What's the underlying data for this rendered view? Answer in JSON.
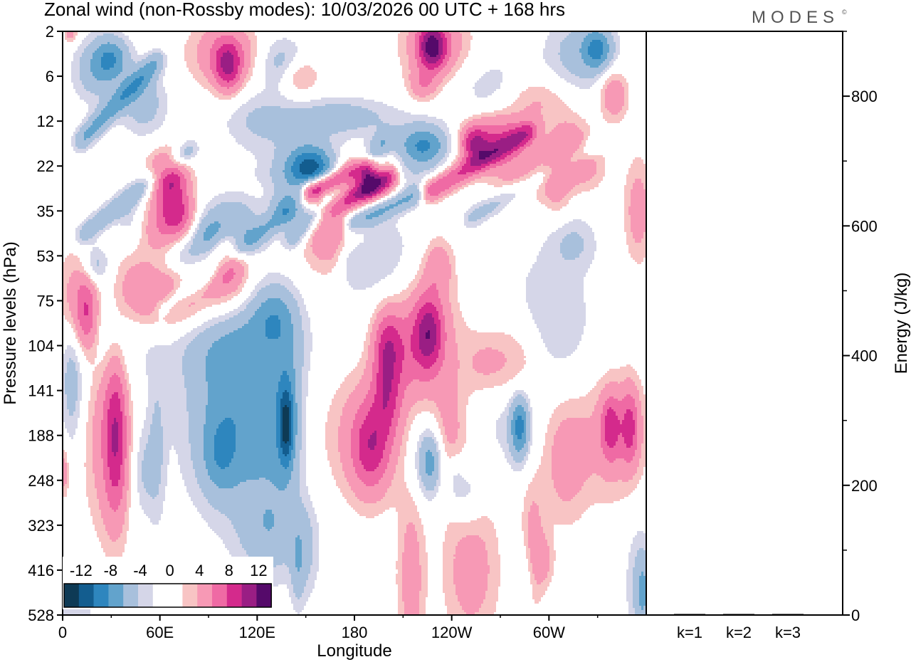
{
  "chart_data": [
    {
      "type": "heatmap",
      "title": "Zonal wind (non-Rossby modes):  10/03/2026  00 UTC  + 168 hrs",
      "brand": "MODES",
      "brand_mark": "©",
      "xlabel": "Longitude",
      "ylabel": "Pressure levels (hPa)",
      "x_ticks": [
        {
          "lon": 0,
          "label": "0"
        },
        {
          "lon": 60,
          "label": "60E"
        },
        {
          "lon": 120,
          "label": "120E"
        },
        {
          "lon": 180,
          "label": "180"
        },
        {
          "lon": 240,
          "label": "120W"
        },
        {
          "lon": 300,
          "label": "60W"
        }
      ],
      "xlim": [
        0,
        360
      ],
      "y_levels": [
        "2",
        "6",
        "12",
        "22",
        "35",
        "53",
        "75",
        "104",
        "141",
        "188",
        "248",
        "323",
        "416",
        "528"
      ],
      "colorbar": {
        "labels": [
          "-12",
          "-8",
          "-4",
          "0",
          "4",
          "8",
          "12"
        ],
        "colors": [
          "#0e3a55",
          "#135d8f",
          "#2e86be",
          "#62a3cc",
          "#a8c0dc",
          "#d5d6e8",
          "#ffffff",
          "#ffffff",
          "#f8c4c4",
          "#f799b5",
          "#ef6aa4",
          "#d42a8c",
          "#9a1e84",
          "#550a6a"
        ]
      },
      "blobs": [
        {
          "lon": 5,
          "lev": 0.05,
          "lonw": 3,
          "levh": 0.15,
          "v": 3
        },
        {
          "lon": 20,
          "lev": 0.9,
          "lonw": 10,
          "levh": 0.5,
          "v": -3
        },
        {
          "lon": 30,
          "lev": 0.6,
          "lonw": 8,
          "levh": 0.35,
          "v": -5
        },
        {
          "lon": 50,
          "lev": 1.6,
          "lonw": 10,
          "levh": 0.5,
          "v": -3
        },
        {
          "lon": 100,
          "lev": 0.5,
          "lonw": 15,
          "levh": 0.5,
          "v": 4
        },
        {
          "lon": 102,
          "lev": 0.8,
          "lonw": 6,
          "levh": 0.4,
          "v": 6
        },
        {
          "lon": 120,
          "lev": 2.0,
          "lonw": 15,
          "levh": 0.5,
          "v": -2
        },
        {
          "lon": 135,
          "lev": 0.7,
          "lonw": 10,
          "levh": 0.4,
          "v": -3
        },
        {
          "lon": 146,
          "lev": 1.0,
          "lonw": 8,
          "levh": 0.3,
          "v": 3
        },
        {
          "lon": 170,
          "lev": 1.9,
          "lonw": 25,
          "levh": 0.3,
          "v": -3
        },
        {
          "lon": 180,
          "lev": 3.2,
          "lonw": 30,
          "levh": 0.2,
          "v": -3
        },
        {
          "lon": 230,
          "lev": 0.3,
          "lonw": 14,
          "levh": 0.6,
          "v": 4
        },
        {
          "lon": 228,
          "lev": 0.35,
          "lonw": 6,
          "levh": 0.35,
          "v": 8
        },
        {
          "lon": 222,
          "lev": 1.2,
          "lonw": 6,
          "levh": 0.25,
          "v": 3
        },
        {
          "lon": 230,
          "lev": 2.4,
          "lonw": 20,
          "levh": 0.35,
          "v": -2
        },
        {
          "lon": 222,
          "lev": 2.6,
          "lonw": 10,
          "levh": 0.3,
          "v": -5
        },
        {
          "lon": 260,
          "lev": 2.5,
          "lonw": 15,
          "levh": 0.4,
          "v": 3
        },
        {
          "lon": 254,
          "lev": 2.5,
          "lonw": 6,
          "levh": 0.25,
          "v": 6
        },
        {
          "lon": 270,
          "lev": 1.3,
          "lonw": 20,
          "levh": 0.5,
          "v": -2
        },
        {
          "lon": 285,
          "lev": 3.2,
          "lonw": 15,
          "levh": 0.4,
          "v": 3
        },
        {
          "lon": 290,
          "lev": 1.5,
          "lonw": 15,
          "levh": 0.4,
          "v": 3
        },
        {
          "lon": 320,
          "lev": 0.5,
          "lonw": 15,
          "levh": 0.6,
          "v": -3
        },
        {
          "lon": 330,
          "lev": 0.4,
          "lonw": 6,
          "levh": 0.3,
          "v": -5
        },
        {
          "lon": 315,
          "lev": 2.6,
          "lonw": 8,
          "levh": 0.5,
          "v": 3
        },
        {
          "lon": 325,
          "lev": 3.0,
          "lonw": 8,
          "levh": 0.4,
          "v": 2
        },
        {
          "lon": 340,
          "lev": 1.4,
          "lonw": 6,
          "levh": 0.4,
          "v": 4
        },
        {
          "lon": 355,
          "lev": 4.0,
          "lonw": 6,
          "levh": 0.8,
          "v": 3
        },
        {
          "lon": 315,
          "lev": 4.7,
          "lonw": 10,
          "levh": 0.4,
          "v": -2
        },
        {
          "lon": 8,
          "lev": 6.0,
          "lonw": 8,
          "levh": 0.8,
          "v": 3
        },
        {
          "lon": 15,
          "lev": 6.3,
          "lonw": 5,
          "levh": 0.6,
          "v": 5
        },
        {
          "lon": 30,
          "lev": 6.8,
          "lonw": 16,
          "levh": 0.8,
          "v": -2
        },
        {
          "lon": 45,
          "lev": 5.8,
          "lonw": 10,
          "levh": 0.6,
          "v": 3
        },
        {
          "lon": 65,
          "lev": 4.4,
          "lonw": 16,
          "levh": 0.45,
          "v": 4
        },
        {
          "lon": 65,
          "lev": 3.2,
          "lonw": 8,
          "levh": 0.35,
          "v": 8
        },
        {
          "lon": 70,
          "lev": 4.0,
          "lonw": 8,
          "levh": 0.4,
          "v": 6
        },
        {
          "lon": 85,
          "lev": 4.4,
          "lonw": 25,
          "levh": 0.5,
          "v": -2
        },
        {
          "lon": 90,
          "lev": 4.6,
          "lonw": 8,
          "levh": 0.35,
          "v": -4
        },
        {
          "lon": 75,
          "lev": 5.0,
          "lonw": 8,
          "levh": 0.35,
          "v": -3
        },
        {
          "lon": 105,
          "lev": 4.4,
          "lonw": 10,
          "levh": 0.45,
          "v": -4
        },
        {
          "lon": 150,
          "lev": 3.0,
          "lonw": 16,
          "levh": 0.5,
          "v": -3
        },
        {
          "lon": 153,
          "lev": 3.0,
          "lonw": 9,
          "levh": 0.3,
          "v": -6
        },
        {
          "lon": 140,
          "lev": 3.9,
          "lonw": 8,
          "levh": 0.3,
          "v": -4
        },
        {
          "lon": 180,
          "lev": 3.5,
          "lonw": 20,
          "levh": 0.4,
          "v": 3
        },
        {
          "lon": 186,
          "lev": 3.3,
          "lonw": 10,
          "levh": 0.3,
          "v": 6
        },
        {
          "lon": 160,
          "lev": 4.5,
          "lonw": 10,
          "levh": 0.6,
          "v": 3
        },
        {
          "lon": 175,
          "lev": 4.6,
          "lonw": 8,
          "levh": 0.6,
          "v": 3
        },
        {
          "lon": 195,
          "lev": 5.0,
          "lonw": 15,
          "levh": 0.8,
          "v": -2
        },
        {
          "lon": 177,
          "lev": 5.0,
          "lonw": 6,
          "levh": 0.45,
          "v": -3
        },
        {
          "lon": 270,
          "lev": 2.2,
          "lonw": 15,
          "levh": 0.3,
          "v": 3
        },
        {
          "lon": 232,
          "lev": 5.2,
          "lonw": 6,
          "levh": 0.4,
          "v": 3
        },
        {
          "lon": 305,
          "lev": 3.2,
          "lonw": 6,
          "levh": 0.6,
          "v": 3
        },
        {
          "lon": 20,
          "lev": 5.2,
          "lonw": 6,
          "levh": 0.3,
          "v": -3
        },
        {
          "lon": 42,
          "lev": 4.3,
          "lonw": 6,
          "levh": 0.4,
          "v": -2
        },
        {
          "lon": 90,
          "lev": 5.7,
          "lonw": 18,
          "levh": 0.6,
          "v": 3
        },
        {
          "lon": 102,
          "lev": 5.0,
          "lonw": 8,
          "levh": 0.5,
          "v": 6
        },
        {
          "lon": 65,
          "lev": 6.0,
          "lonw": 12,
          "levh": 0.45,
          "v": 3
        },
        {
          "lon": 110,
          "lev": 7.0,
          "lonw": 30,
          "levh": 0.6,
          "v": -2
        },
        {
          "lon": 130,
          "lev": 6.3,
          "lonw": 10,
          "levh": 0.5,
          "v": -4
        },
        {
          "lon": 300,
          "lev": 6.5,
          "lonw": 20,
          "levh": 1.2,
          "v": -2
        },
        {
          "lon": 260,
          "lev": 7.4,
          "lonw": 10,
          "levh": 0.5,
          "v": 2
        },
        {
          "lon": 27,
          "lev": 9.0,
          "lonw": 10,
          "levh": 1.6,
          "v": 3
        },
        {
          "lon": 33,
          "lev": 9.0,
          "lonw": 5,
          "levh": 1.3,
          "v": 6
        },
        {
          "lon": 6,
          "lev": 7.8,
          "lonw": 5,
          "levh": 1.0,
          "v": -3
        },
        {
          "lon": 58,
          "lev": 9.3,
          "lonw": 4,
          "levh": 1.2,
          "v": -2
        },
        {
          "lon": 100,
          "lev": 8.5,
          "lonw": 24,
          "levh": 1.6,
          "v": -2
        },
        {
          "lon": 105,
          "lev": 8.3,
          "lonw": 16,
          "levh": 1.4,
          "v": -3
        },
        {
          "lon": 97,
          "lev": 9.5,
          "lonw": 8,
          "levh": 0.6,
          "v": -3
        },
        {
          "lon": 125,
          "lev": 9.8,
          "lonw": 12,
          "levh": 1.8,
          "v": -2
        },
        {
          "lon": 138,
          "lev": 8.5,
          "lonw": 7,
          "levh": 1.2,
          "v": -4
        },
        {
          "lon": 138,
          "lev": 8.8,
          "lonw": 3,
          "levh": 0.6,
          "v": -6
        },
        {
          "lon": 130,
          "lev": 11.2,
          "lonw": 15,
          "levh": 0.6,
          "v": -2
        },
        {
          "lon": 150,
          "lev": 11.6,
          "lonw": 6,
          "levh": 0.8,
          "v": -2
        },
        {
          "lon": 188,
          "lev": 9.0,
          "lonw": 18,
          "levh": 1.0,
          "v": 3
        },
        {
          "lon": 190,
          "lev": 9.3,
          "lonw": 8,
          "levh": 0.7,
          "v": 5
        },
        {
          "lon": 200,
          "lev": 8.2,
          "lonw": 6,
          "levh": 0.6,
          "v": 4
        },
        {
          "lon": 210,
          "lev": 7.2,
          "lonw": 12,
          "levh": 0.8,
          "v": 3
        },
        {
          "lon": 200,
          "lev": 7.0,
          "lonw": 6,
          "levh": 0.6,
          "v": 5
        },
        {
          "lon": 226,
          "lev": 6.7,
          "lonw": 14,
          "levh": 0.9,
          "v": 3
        },
        {
          "lon": 226,
          "lev": 6.7,
          "lonw": 6,
          "levh": 0.6,
          "v": 6
        },
        {
          "lon": 225,
          "lev": 9.5,
          "lonw": 10,
          "levh": 0.7,
          "v": -2
        },
        {
          "lon": 227,
          "lev": 9.6,
          "lonw": 5,
          "levh": 0.5,
          "v": -4
        },
        {
          "lon": 238,
          "lev": 9.0,
          "lonw": 8,
          "levh": 0.9,
          "v": 3
        },
        {
          "lon": 250,
          "lev": 10.3,
          "lonw": 6,
          "levh": 0.5,
          "v": -2
        },
        {
          "lon": 252,
          "lev": 12.0,
          "lonw": 12,
          "levh": 1.1,
          "v": 3
        },
        {
          "lon": 215,
          "lev": 12.2,
          "lonw": 6,
          "levh": 1.4,
          "v": 3
        },
        {
          "lon": 276,
          "lev": 8.5,
          "lonw": 12,
          "levh": 0.8,
          "v": -2
        },
        {
          "lon": 282,
          "lev": 8.8,
          "lonw": 4,
          "levh": 0.5,
          "v": -6
        },
        {
          "lon": 280,
          "lev": 7.5,
          "lonw": 12,
          "levh": 0.8,
          "v": 3
        },
        {
          "lon": 290,
          "lev": 11.5,
          "lonw": 5,
          "levh": 1.0,
          "v": 3
        },
        {
          "lon": 310,
          "lev": 9.5,
          "lonw": 10,
          "levh": 1.0,
          "v": 3
        },
        {
          "lon": 340,
          "lev": 9.0,
          "lonw": 14,
          "levh": 1.0,
          "v": 3
        },
        {
          "lon": 350,
          "lev": 8.8,
          "lonw": 4,
          "levh": 0.6,
          "v": 5
        },
        {
          "lon": 338,
          "lev": 8.8,
          "lonw": 4,
          "levh": 0.5,
          "v": 5
        },
        {
          "lon": 355,
          "lev": 12.3,
          "lonw": 6,
          "levh": 1.0,
          "v": -2
        },
        {
          "lon": 358,
          "lev": 12.5,
          "lonw": 3,
          "levh": 0.6,
          "v": -3
        },
        {
          "lon": 8,
          "lev": 12.8,
          "lonw": 8,
          "levh": 0.8,
          "v": -2
        },
        {
          "lon": 1,
          "lev": 9.8,
          "lonw": 2,
          "levh": 0.4,
          "v": 3
        },
        {
          "lon": 285,
          "lev": 12.2,
          "lonw": 4,
          "levh": 0.6,
          "v": -2
        },
        {
          "lon": 298,
          "lev": 11.8,
          "lonw": 4,
          "levh": 0.4,
          "v": 2
        },
        {
          "lon": 242,
          "lev": 10.0,
          "lonw": 4,
          "levh": 0.4,
          "v": -2
        },
        {
          "lon": 145,
          "lev": 12.0,
          "lonw": 3,
          "levh": 0.6,
          "v": -2
        },
        {
          "lon": 50,
          "lev": 9.8,
          "lonw": 5,
          "levh": 0.7,
          "v": -2
        }
      ],
      "streaks": [
        {
          "lon0": 140,
          "lev0": 4.7,
          "lon1": 200,
          "lev1": 2.4,
          "w": 4,
          "v": -2
        },
        {
          "lon0": 150,
          "lev0": 3.6,
          "lon1": 190,
          "lev1": 3.0,
          "w": 3,
          "v": 3
        },
        {
          "lon0": 10,
          "lev0": 2.5,
          "lon1": 60,
          "lev1": 0.6,
          "w": 4,
          "v": -2
        },
        {
          "lon0": 175,
          "lev0": 4.3,
          "lon1": 220,
          "lev1": 3.6,
          "w": 3,
          "v": -2
        },
        {
          "lon0": 225,
          "lev0": 3.6,
          "lon1": 290,
          "lev1": 2.2,
          "w": 4,
          "v": 3
        },
        {
          "lon0": 60,
          "lev0": 6.2,
          "lon1": 140,
          "lev1": 4.0,
          "w": 4,
          "v": -2
        },
        {
          "lon0": 160,
          "lev0": 3.9,
          "lon1": 205,
          "lev1": 3.2,
          "w": 3,
          "v": 3
        },
        {
          "lon0": 160,
          "lev0": 3.8,
          "lon1": 185,
          "lev1": 3.4,
          "w": 2,
          "v": -2
        },
        {
          "lon0": 10,
          "lev0": 4.6,
          "lon1": 80,
          "lev1": 2.6,
          "w": 4,
          "v": -2
        },
        {
          "lon0": 250,
          "lev0": 4.2,
          "lon1": 330,
          "lev1": 2.5,
          "w": 3,
          "v": -2
        }
      ]
    },
    {
      "type": "bar",
      "categories": [
        "k=1",
        "k=2",
        "k=3"
      ],
      "values": [
        0,
        0,
        0
      ],
      "ylabel": "Energy (J/kg)",
      "ylim": [
        0,
        900
      ],
      "y_ticks": [
        0,
        200,
        400,
        600,
        800
      ]
    }
  ]
}
